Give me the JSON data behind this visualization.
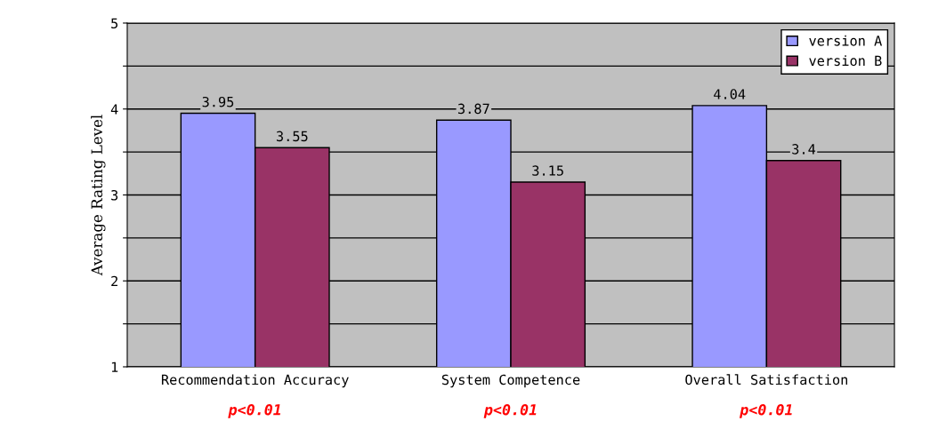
{
  "chart_data": {
    "type": "bar",
    "ylabel": "Average Rating Level",
    "categories": [
      "Recommendation Accuracy",
      "System Competence",
      "Overall Satisfaction"
    ],
    "series": [
      {
        "name": "version A",
        "color": "#9999ff",
        "values": [
          3.95,
          3.87,
          4.04
        ]
      },
      {
        "name": "version B",
        "color": "#993366",
        "values": [
          3.55,
          3.15,
          3.4
        ]
      }
    ],
    "ylim": [
      1,
      5
    ],
    "yticks": [
      1,
      {
        "value": 1.5,
        "label": null
      },
      2,
      {
        "value": 2.5,
        "label": null
      },
      3,
      {
        "value": 3.5,
        "label": null
      },
      4,
      {
        "value": 4.5,
        "label": null
      },
      5
    ],
    "grid": "y",
    "legend": "top right",
    "data_labels": true,
    "annotations": [
      "p<0.01",
      "p<0.01",
      "p<0.01"
    ]
  }
}
